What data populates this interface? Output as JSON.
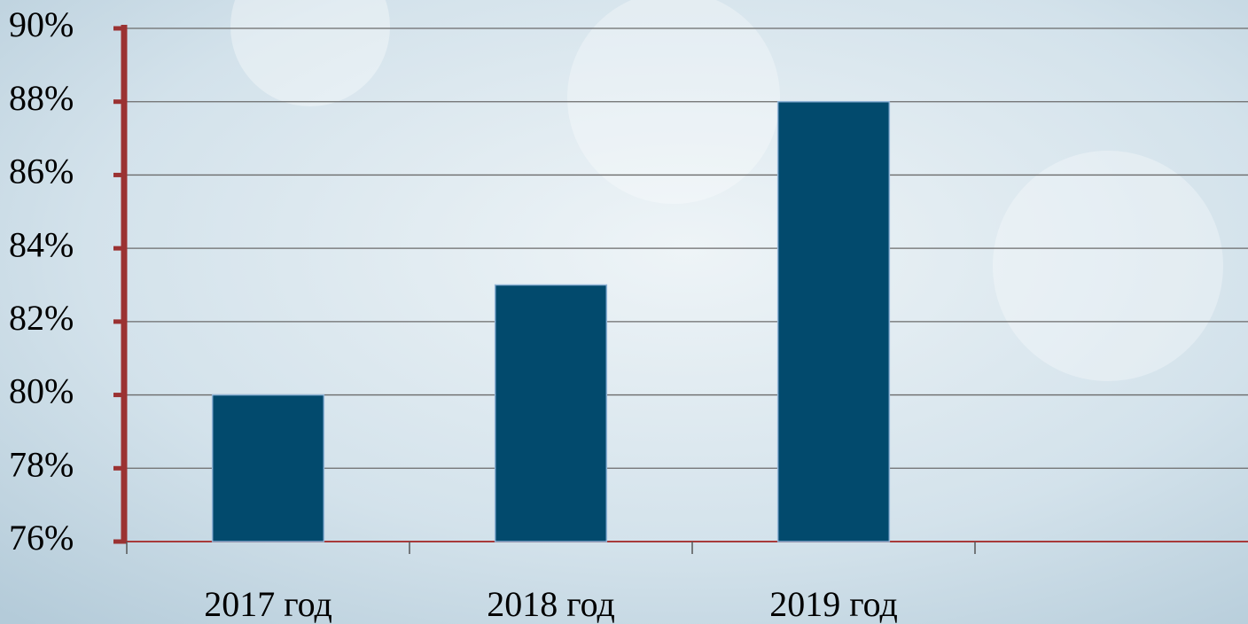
{
  "chart_data": {
    "type": "bar",
    "categories": [
      "2017 год",
      "2018 год",
      "2019 год",
      null
    ],
    "values": [
      80,
      83,
      88,
      null
    ],
    "color": "#024a6d",
    "ylim": [
      76,
      90
    ],
    "yticks": [
      {
        "value": 76,
        "label": "76%"
      },
      {
        "value": 78,
        "label": "78%"
      },
      {
        "value": 80,
        "label": "80%"
      },
      {
        "value": 82,
        "label": "82%"
      },
      {
        "value": 84,
        "label": "84%"
      },
      {
        "value": 86,
        "label": "86%"
      },
      {
        "value": 88,
        "label": "88%"
      },
      {
        "value": 90,
        "label": "90%"
      }
    ],
    "grid": true
  }
}
